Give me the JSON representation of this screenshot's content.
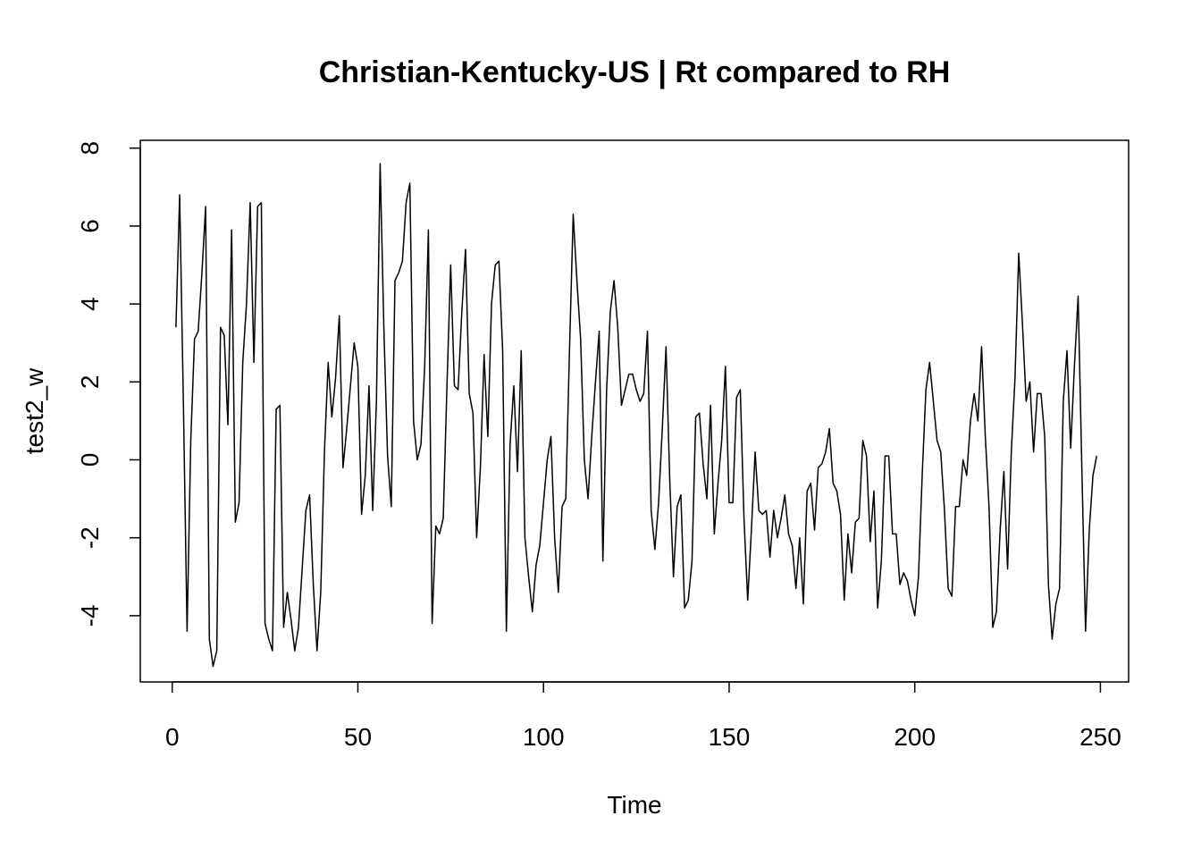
{
  "chart_data": {
    "type": "line",
    "title": "Christian-Kentucky-US | Rt compared to RH",
    "xlabel": "Time",
    "ylabel": "test2_w",
    "xlim": [
      -8.6,
      257.6
    ],
    "ylim": [
      -5.7,
      8.2
    ],
    "x_ticks": [
      0,
      50,
      100,
      150,
      200,
      250
    ],
    "y_ticks": [
      -4,
      -2,
      0,
      2,
      4,
      6,
      8
    ],
    "grid": false,
    "legend": "none",
    "line_color": "#000000",
    "series": [
      {
        "x_start": 1,
        "x_step": 1,
        "values": [
          3.4,
          6.8,
          1.5,
          -4.4,
          0.5,
          3.1,
          3.3,
          4.8,
          6.5,
          -4.6,
          -5.3,
          -4.9,
          3.4,
          3.2,
          0.9,
          5.9,
          -1.6,
          -1.1,
          2.5,
          4.0,
          6.6,
          2.5,
          6.5,
          6.6,
          -4.2,
          -4.6,
          -4.9,
          1.3,
          1.4,
          -4.3,
          -3.4,
          -4.1,
          -4.9,
          -4.3,
          -2.8,
          -1.3,
          -0.9,
          -3.2,
          -4.9,
          -3.4,
          0.2,
          2.5,
          1.1,
          2.1,
          3.7,
          -0.2,
          0.8,
          1.9,
          3.0,
          2.4,
          -1.4,
          -0.4,
          1.9,
          -1.3,
          1.5,
          7.6,
          3.4,
          0.1,
          -1.2,
          4.6,
          4.8,
          5.1,
          6.6,
          7.1,
          1.0,
          0.0,
          0.4,
          2.4,
          5.9,
          -4.2,
          -1.7,
          -1.9,
          -1.5,
          1.9,
          5.0,
          1.9,
          1.8,
          3.8,
          5.4,
          1.7,
          1.2,
          -2.0,
          -0.2,
          2.7,
          0.6,
          4.0,
          5.0,
          5.1,
          2.8,
          -4.4,
          0.4,
          1.9,
          -0.3,
          2.8,
          -2.0,
          -3.0,
          -3.9,
          -2.7,
          -2.2,
          -1.1,
          0.0,
          0.6,
          -2.0,
          -3.4,
          -1.2,
          -1.0,
          2.8,
          6.3,
          4.6,
          3.1,
          0.0,
          -1.0,
          0.6,
          2.0,
          3.3,
          -2.6,
          1.8,
          3.8,
          4.6,
          3.4,
          1.4,
          1.8,
          2.2,
          2.2,
          1.8,
          1.5,
          1.7,
          3.3,
          -1.3,
          -2.3,
          -1.1,
          0.8,
          2.9,
          -0.5,
          -3.0,
          -1.2,
          -0.9,
          -3.8,
          -3.6,
          -2.6,
          1.1,
          1.2,
          -0.1,
          -1.0,
          1.4,
          -1.9,
          -0.6,
          0.5,
          2.4,
          -1.1,
          -1.1,
          1.6,
          1.8,
          -1.5,
          -3.6,
          -1.8,
          0.2,
          -1.3,
          -1.4,
          -1.3,
          -2.5,
          -1.3,
          -2.0,
          -1.5,
          -0.9,
          -1.9,
          -2.2,
          -3.3,
          -2.0,
          -3.7,
          -0.8,
          -0.6,
          -1.8,
          -0.2,
          -0.1,
          0.2,
          0.8,
          -0.6,
          -0.8,
          -1.4,
          -3.6,
          -1.9,
          -2.9,
          -1.6,
          -1.5,
          0.5,
          0.1,
          -2.1,
          -0.8,
          -3.8,
          -2.6,
          0.1,
          0.1,
          -1.9,
          -1.9,
          -3.2,
          -2.9,
          -3.1,
          -3.6,
          -4.0,
          -3.0,
          -0.4,
          1.8,
          2.5,
          1.5,
          0.5,
          0.2,
          -1.3,
          -3.3,
          -3.5,
          -1.2,
          -1.2,
          0.0,
          -0.4,
          1.0,
          1.7,
          1.0,
          2.9,
          0.6,
          -1.2,
          -4.3,
          -3.9,
          -1.8,
          -0.3,
          -2.8,
          0.2,
          2.1,
          5.3,
          3.5,
          1.5,
          2.0,
          0.2,
          1.7,
          1.7,
          0.6,
          -3.2,
          -4.6,
          -3.7,
          -3.3,
          1.5,
          2.8,
          0.3,
          2.4,
          4.2,
          -0.2,
          -4.4,
          -1.8,
          -0.4,
          0.1
        ]
      }
    ]
  }
}
